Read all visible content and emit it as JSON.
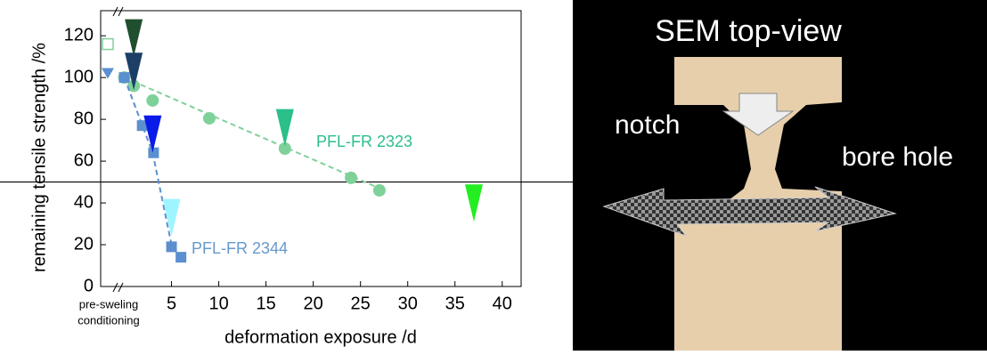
{
  "chart_data": {
    "type": "scatter",
    "ylabel": "remaining tensile strength /%",
    "xlabel": "deformation exposure /d",
    "x_note": [
      "pre-sweling",
      "conditioning"
    ],
    "xlim": [
      -2.5,
      42
    ],
    "ylim": [
      0,
      132
    ],
    "xticks": [
      5,
      10,
      15,
      20,
      25,
      30,
      35,
      40
    ],
    "yticks": [
      0,
      20,
      40,
      60,
      80,
      100,
      120
    ],
    "reference_line": 50,
    "series": [
      {
        "name": "PFL-FR 2323",
        "color": "#7fd19a",
        "label_color": "#2bbf8a",
        "marker": "circle",
        "x": [
          0,
          1,
          3,
          9,
          17,
          24,
          27
        ],
        "values": [
          100,
          96,
          89,
          80.5,
          66,
          52,
          46
        ],
        "pre_value": 116,
        "fit": {
          "x": [
            0,
            27
          ],
          "values": [
            100,
            47
          ]
        }
      },
      {
        "name": "PFL-FR 2344",
        "color": "#5b8fcf",
        "label_color": "#6699cc",
        "marker": "square",
        "x": [
          0,
          1.9,
          3.1,
          5,
          6
        ],
        "values": [
          100,
          77,
          64,
          19,
          14
        ],
        "pre_value": 102,
        "fit": {
          "x": [
            0,
            3,
            5
          ],
          "values": [
            100,
            64,
            20
          ]
        }
      }
    ],
    "markers": {
      "x": [
        1,
        1,
        3,
        5,
        17,
        37
      ],
      "values": [
        110,
        94,
        64,
        24,
        67,
        31
      ],
      "colors": [
        "#1f4f2f",
        "#1d3f66",
        "#0a1ae8",
        "#9ff5ff",
        "#2bbf8a",
        "#22ee22"
      ]
    }
  },
  "image": {
    "title": "SEM top-view",
    "labels": [
      "notch",
      "bore hole"
    ]
  }
}
